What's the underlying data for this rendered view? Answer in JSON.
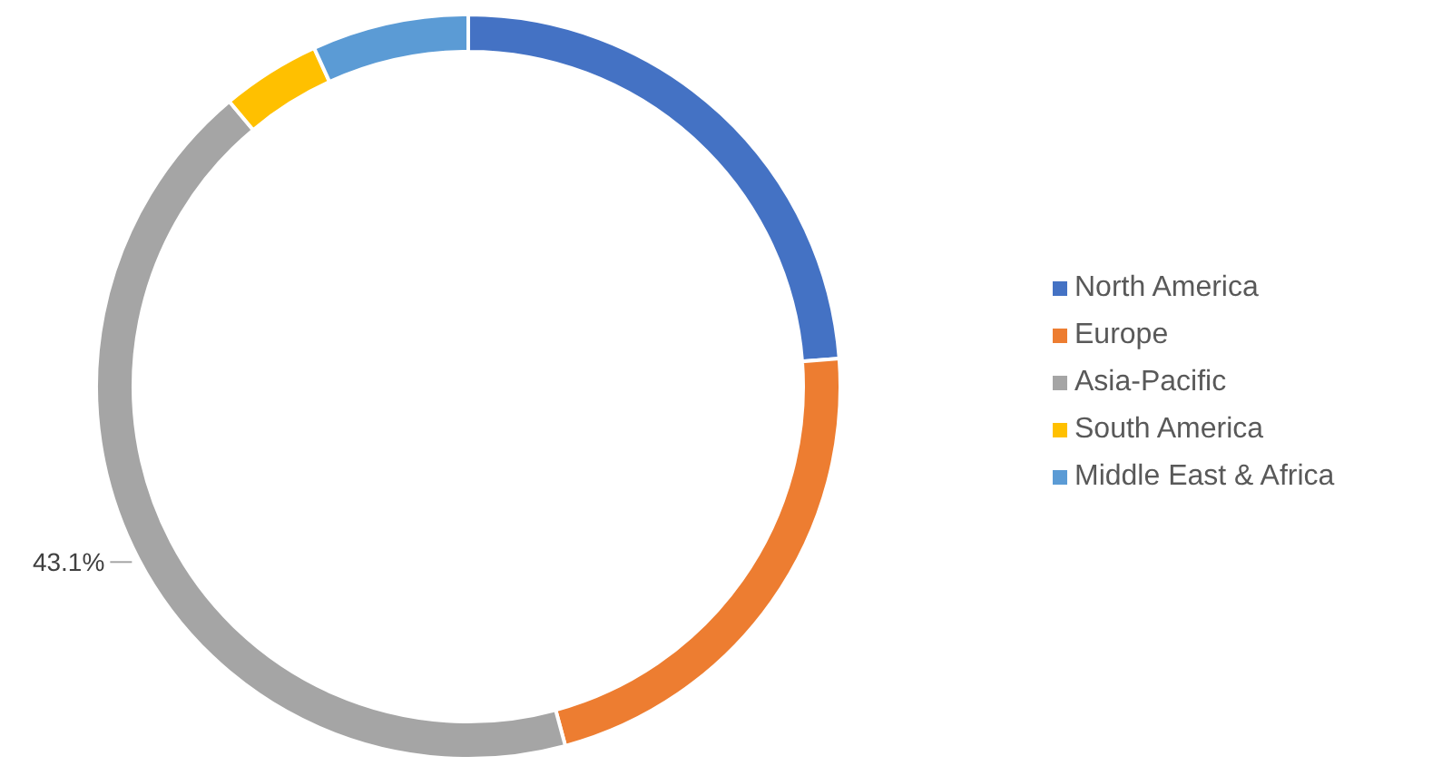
{
  "chart_data": {
    "type": "donut",
    "categories": [
      "North America",
      "Europe",
      "Asia-Pacific",
      "South America",
      "Middle East & Africa"
    ],
    "values": [
      23.8,
      22,
      43.1,
      4.3,
      6.8
    ],
    "colors": [
      "#4472c4",
      "#ed7d31",
      "#a5a5a5",
      "#ffc000",
      "#5b9bd5"
    ],
    "value_labels": [
      null,
      null,
      "43.1%",
      null,
      null
    ],
    "legend": "right"
  }
}
